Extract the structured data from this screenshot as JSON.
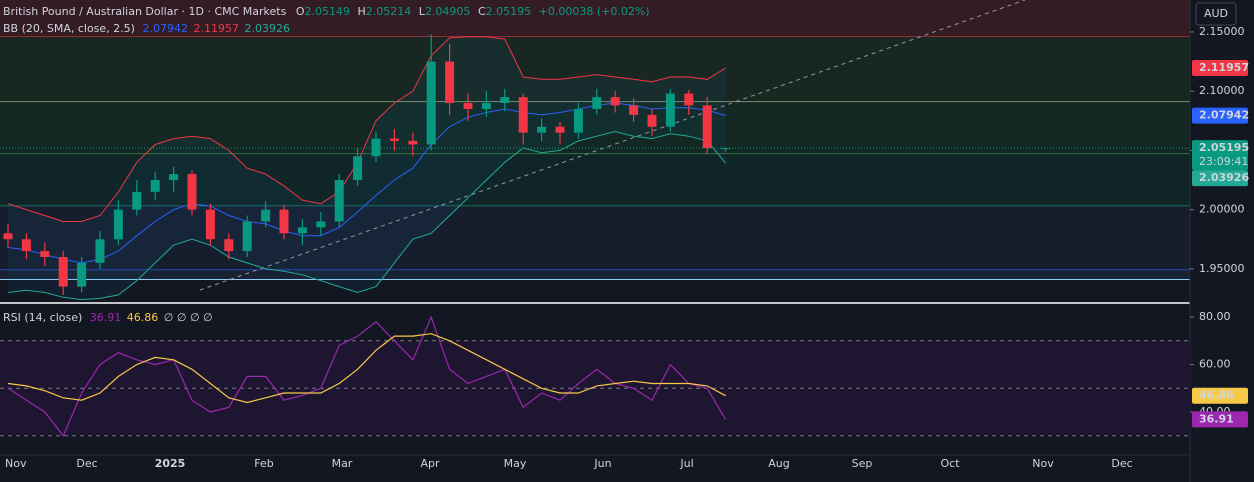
{
  "chart_data": [
    {
      "type": "candlestick",
      "title": "British Pound / Australian Dollar · 1D · CMC Markets",
      "quote": [
        {
          "label": "O",
          "value": 2.05149
        },
        {
          "label": "H",
          "value": 2.05214
        },
        {
          "label": "L",
          "value": 2.04905
        },
        {
          "label": "C",
          "value": 2.05195
        }
      ],
      "change": "+0.00038 (+0.02%)",
      "currency": "AUD",
      "countdown": "23:09:41",
      "categories": [
        null,
        null,
        null,
        null,
        null,
        null,
        null,
        null,
        null,
        null,
        null,
        null,
        null,
        null,
        null,
        null,
        null,
        null,
        null,
        null,
        null,
        null,
        null,
        null,
        null,
        null,
        null,
        null,
        null,
        null,
        null,
        null,
        null,
        null,
        null,
        null,
        null,
        null,
        null,
        null
      ],
      "open": [
        1.98,
        1.975,
        1.965,
        1.96,
        1.935,
        1.955,
        1.975,
        2.0,
        2.015,
        2.025,
        2.03,
        2.0,
        1.975,
        1.965,
        1.99,
        2.0,
        1.98,
        1.985,
        1.99,
        2.025,
        2.045,
        2.06,
        2.058,
        2.055,
        2.125,
        2.09,
        2.085,
        2.09,
        2.095,
        2.065,
        2.07,
        2.065,
        2.085,
        2.095,
        2.088,
        2.08,
        2.07,
        2.098,
        2.088,
        2.05149
      ],
      "high": [
        1.988,
        1.98,
        1.972,
        1.965,
        1.96,
        1.982,
        2.008,
        2.025,
        2.032,
        2.036,
        2.033,
        2.005,
        1.98,
        1.995,
        2.007,
        2.004,
        1.992,
        1.998,
        2.03,
        2.052,
        2.066,
        2.068,
        2.065,
        2.148,
        2.14,
        2.098,
        2.1,
        2.102,
        2.098,
        2.077,
        2.074,
        2.09,
        2.102,
        2.1,
        2.094,
        2.085,
        2.102,
        2.101,
        2.095,
        2.05214
      ],
      "low": [
        1.968,
        1.958,
        1.952,
        1.928,
        1.93,
        1.95,
        1.97,
        1.995,
        2.008,
        2.015,
        1.995,
        1.97,
        1.958,
        1.96,
        1.985,
        1.975,
        1.97,
        1.978,
        1.985,
        2.02,
        2.04,
        2.05,
        2.045,
        2.05,
        2.08,
        2.075,
        2.078,
        2.083,
        2.055,
        2.058,
        2.055,
        2.06,
        2.08,
        2.082,
        2.074,
        2.062,
        2.066,
        2.08,
        2.047,
        2.04905
      ],
      "close": [
        1.975,
        1.965,
        1.96,
        1.935,
        1.955,
        1.975,
        2.0,
        2.015,
        2.025,
        2.03,
        2.0,
        1.975,
        1.965,
        1.99,
        2.0,
        1.98,
        1.985,
        1.99,
        2.025,
        2.045,
        2.06,
        2.058,
        2.055,
        2.125,
        2.09,
        2.085,
        2.09,
        2.095,
        2.065,
        2.07,
        2.065,
        2.085,
        2.095,
        2.088,
        2.08,
        2.07,
        2.098,
        2.088,
        2.052,
        2.05195
      ],
      "up_color": "#089981",
      "down_color": "#f23645",
      "indicator": {
        "name": "BB (20, SMA, close, 2.5)",
        "series": [
          {
            "color": "#2962ff",
            "values": [
              1.968,
              1.966,
              1.962,
              1.958,
              1.955,
              1.958,
              1.965,
              1.978,
              1.99,
              2.0,
              2.005,
              2.003,
              1.995,
              1.99,
              1.988,
              1.982,
              1.978,
              1.978,
              1.985,
              1.998,
              2.012,
              2.025,
              2.035,
              2.055,
              2.07,
              2.078,
              2.082,
              2.085,
              2.082,
              2.08,
              2.082,
              2.085,
              2.088,
              2.09,
              2.088,
              2.085,
              2.086,
              2.086,
              2.084,
              2.07942
            ]
          },
          {
            "color": "#f23645",
            "values": [
              2.005,
              2.0,
              1.995,
              1.99,
              1.99,
              1.995,
              2.015,
              2.04,
              2.055,
              2.06,
              2.062,
              2.06,
              2.05,
              2.035,
              2.03,
              2.02,
              2.008,
              2.005,
              2.015,
              2.04,
              2.075,
              2.09,
              2.1,
              2.13,
              2.145,
              2.146,
              2.146,
              2.144,
              2.112,
              2.11,
              2.11,
              2.112,
              2.114,
              2.112,
              2.11,
              2.108,
              2.112,
              2.112,
              2.11,
              2.11957
            ]
          },
          {
            "color": "#22ab94",
            "values": [
              1.93,
              1.932,
              1.93,
              1.926,
              1.924,
              1.925,
              1.928,
              1.94,
              1.955,
              1.97,
              1.975,
              1.97,
              1.96,
              1.955,
              1.95,
              1.948,
              1.945,
              1.94,
              1.935,
              1.93,
              1.935,
              1.955,
              1.975,
              1.98,
              1.995,
              2.01,
              2.025,
              2.04,
              2.052,
              2.048,
              2.05,
              2.058,
              2.062,
              2.066,
              2.062,
              2.06,
              2.064,
              2.062,
              2.058,
              2.03926
            ]
          }
        ]
      },
      "levels": [
        2.146,
        2.091,
        2.047,
        2.003,
        1.949,
        1.941
      ],
      "ylim": [
        1.922,
        2.177
      ],
      "yticks": [
        {
          "value": 2.15,
          "label": "2.15000"
        },
        {
          "value": 2.1,
          "label": "2.10000"
        },
        {
          "value": 2.05,
          "label": "2.05000"
        },
        {
          "value": 2.0,
          "label": "2.00000"
        },
        {
          "value": 1.95,
          "label": "1.95000"
        }
      ],
      "time_labels": [
        "Nov",
        "Dec",
        "2025",
        "Feb",
        "Mar",
        "Apr",
        "May",
        "Jun",
        "Jul",
        "Aug",
        "Sep",
        "Oct",
        "Nov",
        "Dec"
      ]
    },
    {
      "type": "line",
      "title": "RSI (14, close)",
      "na_labels": "∅ ∅ ∅ ∅",
      "series": [
        {
          "color": "#9c27b0",
          "values": [
            50,
            45,
            40,
            30,
            48,
            60,
            65,
            62,
            60,
            62,
            45,
            40,
            42,
            55,
            55,
            45,
            47,
            50,
            68,
            72,
            78,
            70,
            62,
            80,
            58,
            52,
            55,
            58,
            42,
            48,
            45,
            52,
            58,
            52,
            50,
            45,
            60,
            52,
            50,
            36.91
          ]
        },
        {
          "color": "#f7c948",
          "values": [
            52,
            51,
            49,
            46,
            45,
            48,
            55,
            60,
            63,
            62,
            58,
            52,
            46,
            44,
            46,
            48,
            48,
            48,
            52,
            58,
            66,
            72,
            72,
            73,
            70,
            66,
            62,
            58,
            54,
            50,
            48,
            48,
            51,
            52,
            53,
            52,
            52,
            52,
            51,
            46.86
          ]
        }
      ],
      "bands": [
        70,
        50,
        30
      ],
      "ylim": [
        21.9,
        85.5
      ],
      "yticks": [
        {
          "value": 80,
          "label": "80.00"
        },
        {
          "value": 60,
          "label": "60.00"
        },
        {
          "value": 40,
          "label": "40.00"
        }
      ]
    }
  ]
}
